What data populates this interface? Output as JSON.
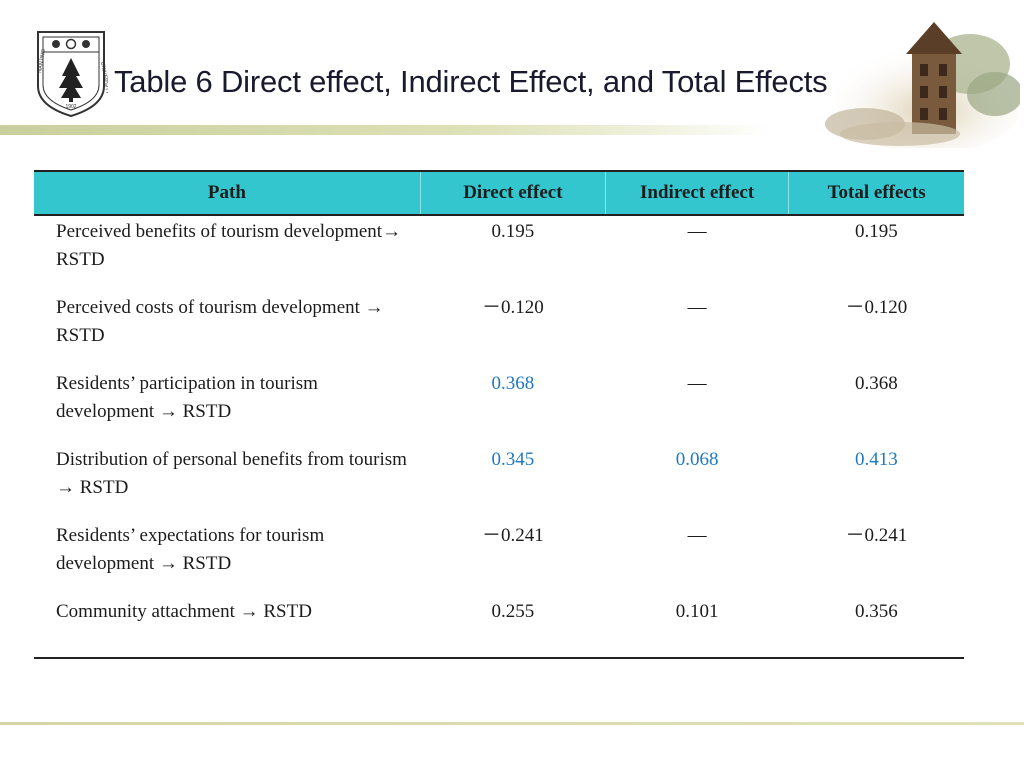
{
  "slide": {
    "title": "Table 6 Direct effect, Indirect Effect, and Total Effects",
    "logo": {
      "icon": "university-seal-icon",
      "text": "NANJING UNIVERSITY",
      "year": "1902"
    },
    "decoration_icon": "campus-tower-icon"
  },
  "table": {
    "headers": [
      "Path",
      "Direct effect",
      "Indirect effect",
      "Total effects"
    ],
    "header_color": "#33c6cf",
    "highlight_color": "#1f78c1",
    "rows": [
      {
        "path": "Perceived benefits of tourism development→ RSTD",
        "direct": "0.195",
        "indirect": "—",
        "total": "0.195",
        "hl": [
          false,
          false,
          false
        ]
      },
      {
        "path": "Perceived costs of tourism development → RSTD",
        "direct": "－0.120",
        "indirect": "—",
        "total": "－0.120",
        "hl": [
          false,
          false,
          false
        ]
      },
      {
        "path": "Residents’ participation in tourism development → RSTD",
        "direct": "0.368",
        "indirect": "—",
        "total": "0.368",
        "hl": [
          true,
          false,
          false
        ]
      },
      {
        "path": "Distribution of personal benefits from tourism → RSTD",
        "direct": "0.345",
        "indirect": "0.068",
        "total": "0.413",
        "hl": [
          true,
          true,
          true
        ]
      },
      {
        "path": "Residents’ expectations for tourism development → RSTD",
        "direct": "－0.241",
        "indirect": "—",
        "total": "－0.241",
        "hl": [
          false,
          false,
          false
        ]
      },
      {
        "path": "Community attachment → RSTD",
        "direct": "0.255",
        "indirect": "0.101",
        "total": "0.356",
        "hl": [
          false,
          false,
          false
        ]
      }
    ]
  }
}
